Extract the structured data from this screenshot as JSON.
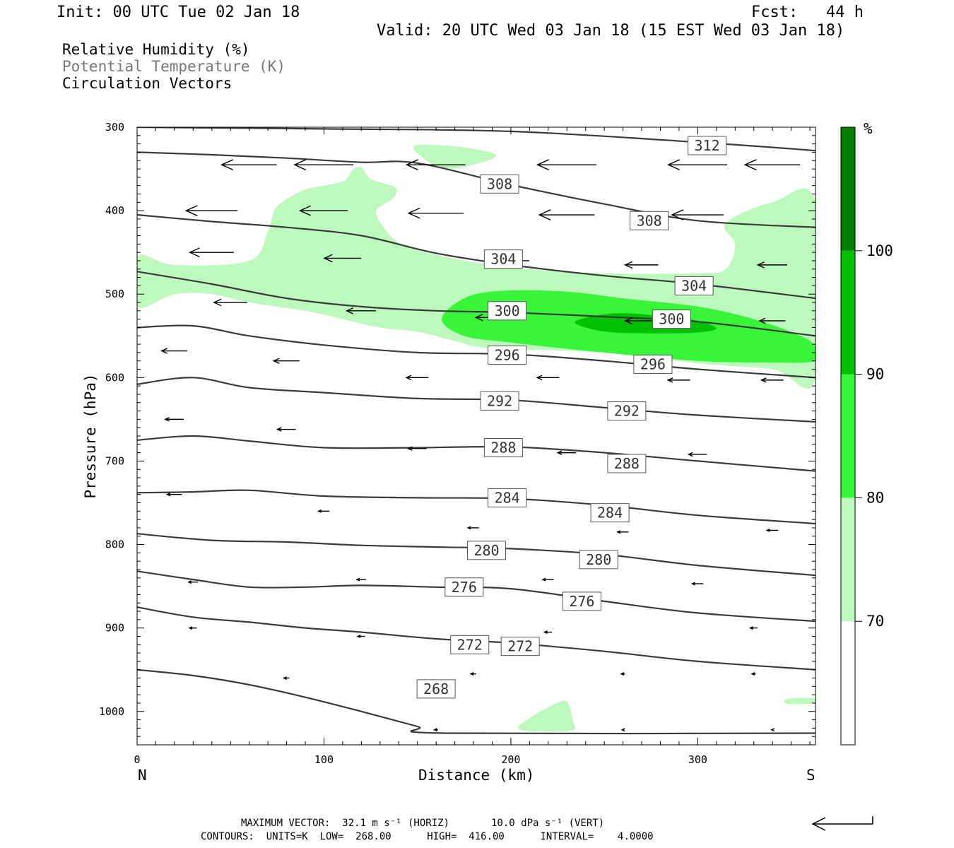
{
  "header": {
    "init": "Init: 00 UTC Tue 02 Jan 18",
    "fcst": "Fcst:   44 h",
    "valid": "Valid: 20 UTC Wed 03 Jan 18 (15 EST Wed 03 Jan 18)"
  },
  "legend": {
    "rh": "Relative Humidity (%)",
    "theta": "Potential Temperature (K)",
    "vectors": "Circulation Vectors"
  },
  "footer": {
    "max_vector": "MAXIMUM VECTOR:  32.1 m s⁻¹ (HORIZ)       10.0 dPa s⁻¹ (VERT)",
    "contours": "CONTOURS:  UNITS=K  LOW=  268.00      HIGH=  416.00      INTERVAL=    4.0000"
  },
  "colors": {
    "rh_70_80": "#bdf9bd",
    "rh_80_90": "#39f539",
    "rh_90_100": "#00c000",
    "rh_100": "#007c00",
    "contour": "#3a3a3a"
  },
  "chart_data": {
    "type": "cross-section",
    "xlabel": "Distance (km)",
    "ylabel": "Pressure (hPa)",
    "xlim": [
      0,
      363
    ],
    "ylim": [
      1040,
      300
    ],
    "x_ticks": [
      0,
      100,
      200,
      300
    ],
    "y_ticks": [
      300,
      400,
      500,
      600,
      700,
      800,
      900,
      1000
    ],
    "x_end_labels": {
      "left": "N",
      "right": "S"
    },
    "colorbar": {
      "unit": "%",
      "levels": [
        70,
        80,
        90,
        100
      ],
      "labels": [
        "70",
        "80",
        "90",
        "100"
      ]
    },
    "isentropes": [
      {
        "value": 268,
        "points": [
          [
            0,
            950
          ],
          [
            30,
            957
          ],
          [
            60,
            968
          ],
          [
            90,
            983
          ],
          [
            120,
            1000
          ],
          [
            150,
            1018
          ],
          [
            165,
            1026
          ],
          [
            363,
            1026
          ]
        ],
        "labels": [
          [
            160,
            973
          ]
        ]
      },
      {
        "value": 272,
        "points": [
          [
            0,
            875
          ],
          [
            30,
            887
          ],
          [
            60,
            893
          ],
          [
            90,
            900
          ],
          [
            120,
            905
          ],
          [
            160,
            913
          ],
          [
            200,
            918
          ],
          [
            250,
            928
          ],
          [
            300,
            940
          ],
          [
            363,
            950
          ]
        ],
        "labels": [
          [
            178,
            920
          ],
          [
            205,
            922
          ]
        ]
      },
      {
        "value": 276,
        "points": [
          [
            0,
            832
          ],
          [
            30,
            842
          ],
          [
            60,
            851
          ],
          [
            90,
            851
          ],
          [
            120,
            849
          ],
          [
            160,
            851
          ],
          [
            200,
            853
          ],
          [
            250,
            868
          ],
          [
            300,
            882
          ],
          [
            363,
            892
          ]
        ],
        "labels": [
          [
            175,
            851
          ],
          [
            238,
            868
          ]
        ]
      },
      {
        "value": 280,
        "points": [
          [
            0,
            787
          ],
          [
            40,
            795
          ],
          [
            80,
            797
          ],
          [
            120,
            801
          ],
          [
            160,
            803
          ],
          [
            200,
            805
          ],
          [
            250,
            812
          ],
          [
            300,
            825
          ],
          [
            363,
            837
          ]
        ],
        "labels": [
          [
            187,
            807
          ],
          [
            247,
            818
          ]
        ]
      },
      {
        "value": 284,
        "points": [
          [
            0,
            738
          ],
          [
            30,
            737
          ],
          [
            60,
            735
          ],
          [
            100,
            742
          ],
          [
            150,
            744
          ],
          [
            200,
            745
          ],
          [
            250,
            753
          ],
          [
            300,
            765
          ],
          [
            363,
            775
          ]
        ],
        "labels": [
          [
            198,
            744
          ],
          [
            253,
            762
          ]
        ]
      },
      {
        "value": 288,
        "points": [
          [
            0,
            675
          ],
          [
            30,
            670
          ],
          [
            60,
            676
          ],
          [
            100,
            684
          ],
          [
            150,
            684
          ],
          [
            200,
            683
          ],
          [
            250,
            690
          ],
          [
            300,
            700
          ],
          [
            363,
            712
          ]
        ],
        "labels": [
          [
            196,
            684
          ],
          [
            262,
            703
          ]
        ]
      },
      {
        "value": 292,
        "points": [
          [
            0,
            608
          ],
          [
            30,
            600
          ],
          [
            60,
            612
          ],
          [
            100,
            618
          ],
          [
            150,
            625
          ],
          [
            200,
            627
          ],
          [
            250,
            636
          ],
          [
            300,
            645
          ],
          [
            363,
            653
          ]
        ],
        "labels": [
          [
            194,
            628
          ],
          [
            262,
            640
          ]
        ]
      },
      {
        "value": 296,
        "points": [
          [
            0,
            540
          ],
          [
            30,
            538
          ],
          [
            60,
            550
          ],
          [
            100,
            561
          ],
          [
            150,
            570
          ],
          [
            200,
            572
          ],
          [
            250,
            580
          ],
          [
            300,
            590
          ],
          [
            363,
            600
          ]
        ],
        "labels": [
          [
            198,
            573
          ],
          [
            276,
            584
          ]
        ]
      },
      {
        "value": 300,
        "points": [
          [
            0,
            473
          ],
          [
            40,
            488
          ],
          [
            80,
            505
          ],
          [
            120,
            515
          ],
          [
            160,
            520
          ],
          [
            200,
            522
          ],
          [
            250,
            527
          ],
          [
            300,
            533
          ],
          [
            363,
            550
          ]
        ],
        "labels": [
          [
            198,
            520
          ],
          [
            286,
            530
          ]
        ]
      },
      {
        "value": 304,
        "points": [
          [
            0,
            405
          ],
          [
            40,
            413
          ],
          [
            80,
            420
          ],
          [
            120,
            430
          ],
          [
            160,
            451
          ],
          [
            200,
            465
          ],
          [
            250,
            478
          ],
          [
            300,
            488
          ],
          [
            363,
            505
          ]
        ],
        "labels": [
          [
            196,
            458
          ],
          [
            298,
            490
          ]
        ]
      },
      {
        "value": 308,
        "points": [
          [
            0,
            330
          ],
          [
            40,
            333
          ],
          [
            80,
            337
          ],
          [
            120,
            342
          ],
          [
            150,
            343
          ],
          [
            200,
            369
          ],
          [
            250,
            392
          ],
          [
            300,
            412
          ],
          [
            363,
            420
          ]
        ],
        "labels": [
          [
            194,
            368
          ],
          [
            274,
            412
          ]
        ]
      },
      {
        "value": 312,
        "points": [
          [
            0,
            300
          ],
          [
            100,
            302
          ],
          [
            200,
            305
          ],
          [
            300,
            318
          ],
          [
            363,
            328
          ]
        ],
        "labels": [
          [
            305,
            322
          ]
        ]
      }
    ],
    "rh_regions": [
      {
        "band": "70-80",
        "points": [
          [
            0,
            455
          ],
          [
            20,
            465
          ],
          [
            60,
            460
          ],
          [
            70,
            425
          ],
          [
            75,
            395
          ],
          [
            90,
            375
          ],
          [
            110,
            365
          ],
          [
            115,
            352
          ],
          [
            120,
            348
          ],
          [
            125,
            362
          ],
          [
            138,
            372
          ],
          [
            137,
            385
          ],
          [
            128,
            400
          ],
          [
            132,
            420
          ],
          [
            140,
            438
          ],
          [
            160,
            453
          ],
          [
            200,
            468
          ],
          [
            250,
            475
          ],
          [
            300,
            475
          ],
          [
            315,
            470
          ],
          [
            320,
            440
          ],
          [
            315,
            415
          ],
          [
            340,
            390
          ],
          [
            363,
            390
          ],
          [
            363,
            600
          ],
          [
            340,
            590
          ],
          [
            300,
            583
          ],
          [
            250,
            570
          ],
          [
            190,
            565
          ],
          [
            170,
            556
          ],
          [
            150,
            545
          ],
          [
            130,
            540
          ],
          [
            110,
            530
          ],
          [
            90,
            520
          ],
          [
            60,
            510
          ],
          [
            40,
            500
          ],
          [
            20,
            500
          ],
          [
            0,
            515
          ]
        ]
      },
      {
        "band": "70-80",
        "points": [
          [
            148,
            323
          ],
          [
            165,
            322
          ],
          [
            185,
            328
          ],
          [
            192,
            335
          ],
          [
            180,
            345
          ],
          [
            165,
            350
          ],
          [
            155,
            340
          ]
        ]
      },
      {
        "band": "80-90",
        "points": [
          [
            163,
            530
          ],
          [
            175,
            505
          ],
          [
            195,
            496
          ],
          [
            230,
            497
          ],
          [
            260,
            505
          ],
          [
            300,
            515
          ],
          [
            330,
            530
          ],
          [
            355,
            550
          ],
          [
            363,
            563
          ],
          [
            363,
            580
          ],
          [
            340,
            582
          ],
          [
            300,
            580
          ],
          [
            250,
            570
          ],
          [
            200,
            558
          ],
          [
            175,
            550
          ]
        ]
      },
      {
        "band": "90-100",
        "points": [
          [
            235,
            532
          ],
          [
            255,
            523
          ],
          [
            280,
            526
          ],
          [
            300,
            532
          ],
          [
            310,
            541
          ],
          [
            300,
            546
          ],
          [
            280,
            547
          ],
          [
            255,
            546
          ],
          [
            240,
            540
          ]
        ]
      },
      {
        "band": "70-80",
        "points": [
          [
            205,
            1022
          ],
          [
            210,
            1008
          ],
          [
            220,
            995
          ],
          [
            225,
            990
          ],
          [
            230,
            988
          ],
          [
            233,
            1010
          ],
          [
            232,
            1023
          ]
        ]
      },
      {
        "band": "70-80",
        "points": [
          [
            348,
            985
          ],
          [
            363,
            984
          ],
          [
            363,
            990
          ],
          [
            348,
            991
          ]
        ]
      }
    ],
    "vectors": [
      {
        "x": 60,
        "p": 345,
        "u": -30,
        "w": 0
      },
      {
        "x": 100,
        "p": 345,
        "u": -32,
        "w": 0
      },
      {
        "x": 160,
        "p": 345,
        "u": -32,
        "w": 0
      },
      {
        "x": 230,
        "p": 345,
        "u": -32,
        "w": 0
      },
      {
        "x": 300,
        "p": 345,
        "u": -32,
        "w": 0
      },
      {
        "x": 340,
        "p": 345,
        "u": -30,
        "w": 0
      },
      {
        "x": 40,
        "p": 400,
        "u": -28,
        "w": 0
      },
      {
        "x": 100,
        "p": 400,
        "u": -26,
        "w": 0
      },
      {
        "x": 160,
        "p": 403,
        "u": -30,
        "w": 0
      },
      {
        "x": 230,
        "p": 405,
        "u": -30,
        "w": 0
      },
      {
        "x": 300,
        "p": 405,
        "u": -28,
        "w": 0
      },
      {
        "x": 40,
        "p": 450,
        "u": -24,
        "w": 0
      },
      {
        "x": 110,
        "p": 457,
        "u": -20,
        "w": 0
      },
      {
        "x": 200,
        "p": 460,
        "u": -20,
        "w": 0
      },
      {
        "x": 270,
        "p": 465,
        "u": -18,
        "w": 0
      },
      {
        "x": 340,
        "p": 465,
        "u": -16,
        "w": 0
      },
      {
        "x": 50,
        "p": 510,
        "u": -18,
        "w": 0
      },
      {
        "x": 120,
        "p": 520,
        "u": -16,
        "w": 0
      },
      {
        "x": 190,
        "p": 528,
        "u": -18,
        "w": 0
      },
      {
        "x": 270,
        "p": 532,
        "u": -18,
        "w": 0
      },
      {
        "x": 340,
        "p": 532,
        "u": -14,
        "w": 0
      },
      {
        "x": 20,
        "p": 568,
        "u": -14,
        "w": 0
      },
      {
        "x": 80,
        "p": 580,
        "u": -14,
        "w": 0
      },
      {
        "x": 150,
        "p": 600,
        "u": -12,
        "w": 0
      },
      {
        "x": 220,
        "p": 600,
        "u": -12,
        "w": 0
      },
      {
        "x": 290,
        "p": 603,
        "u": -12,
        "w": 0
      },
      {
        "x": 340,
        "p": 603,
        "u": -12,
        "w": 0
      },
      {
        "x": 20,
        "p": 650,
        "u": -10,
        "w": 0
      },
      {
        "x": 80,
        "p": 662,
        "u": -10,
        "w": 0
      },
      {
        "x": 150,
        "p": 685,
        "u": -10,
        "w": 0
      },
      {
        "x": 230,
        "p": 690,
        "u": -10,
        "w": 0
      },
      {
        "x": 300,
        "p": 692,
        "u": -10,
        "w": 0
      },
      {
        "x": 20,
        "p": 740,
        "u": -8,
        "w": 0
      },
      {
        "x": 100,
        "p": 760,
        "u": -6,
        "w": 0
      },
      {
        "x": 180,
        "p": 780,
        "u": -6,
        "w": 0
      },
      {
        "x": 260,
        "p": 785,
        "u": -6,
        "w": 0
      },
      {
        "x": 340,
        "p": 783,
        "u": -6,
        "w": 0
      },
      {
        "x": 30,
        "p": 845,
        "u": -5,
        "w": 0
      },
      {
        "x": 120,
        "p": 842,
        "u": -5,
        "w": 0
      },
      {
        "x": 220,
        "p": 842,
        "u": -6,
        "w": 0
      },
      {
        "x": 300,
        "p": 847,
        "u": -6,
        "w": 0
      },
      {
        "x": 30,
        "p": 900,
        "u": -4,
        "w": 0
      },
      {
        "x": 120,
        "p": 910,
        "u": -4,
        "w": 0
      },
      {
        "x": 220,
        "p": 905,
        "u": -4,
        "w": 0
      },
      {
        "x": 330,
        "p": 900,
        "u": -4,
        "w": 0
      },
      {
        "x": 80,
        "p": 960,
        "u": -3,
        "w": 0
      },
      {
        "x": 180,
        "p": 955,
        "u": -3,
        "w": 0
      },
      {
        "x": 260,
        "p": 955,
        "u": -2,
        "w": 0
      },
      {
        "x": 330,
        "p": 955,
        "u": -2,
        "w": 0
      },
      {
        "x": 160,
        "p": 1022,
        "u": -2,
        "w": 0
      },
      {
        "x": 260,
        "p": 1022,
        "u": -1,
        "w": 0
      },
      {
        "x": 340,
        "p": 1022,
        "u": -1,
        "w": 0
      }
    ]
  }
}
